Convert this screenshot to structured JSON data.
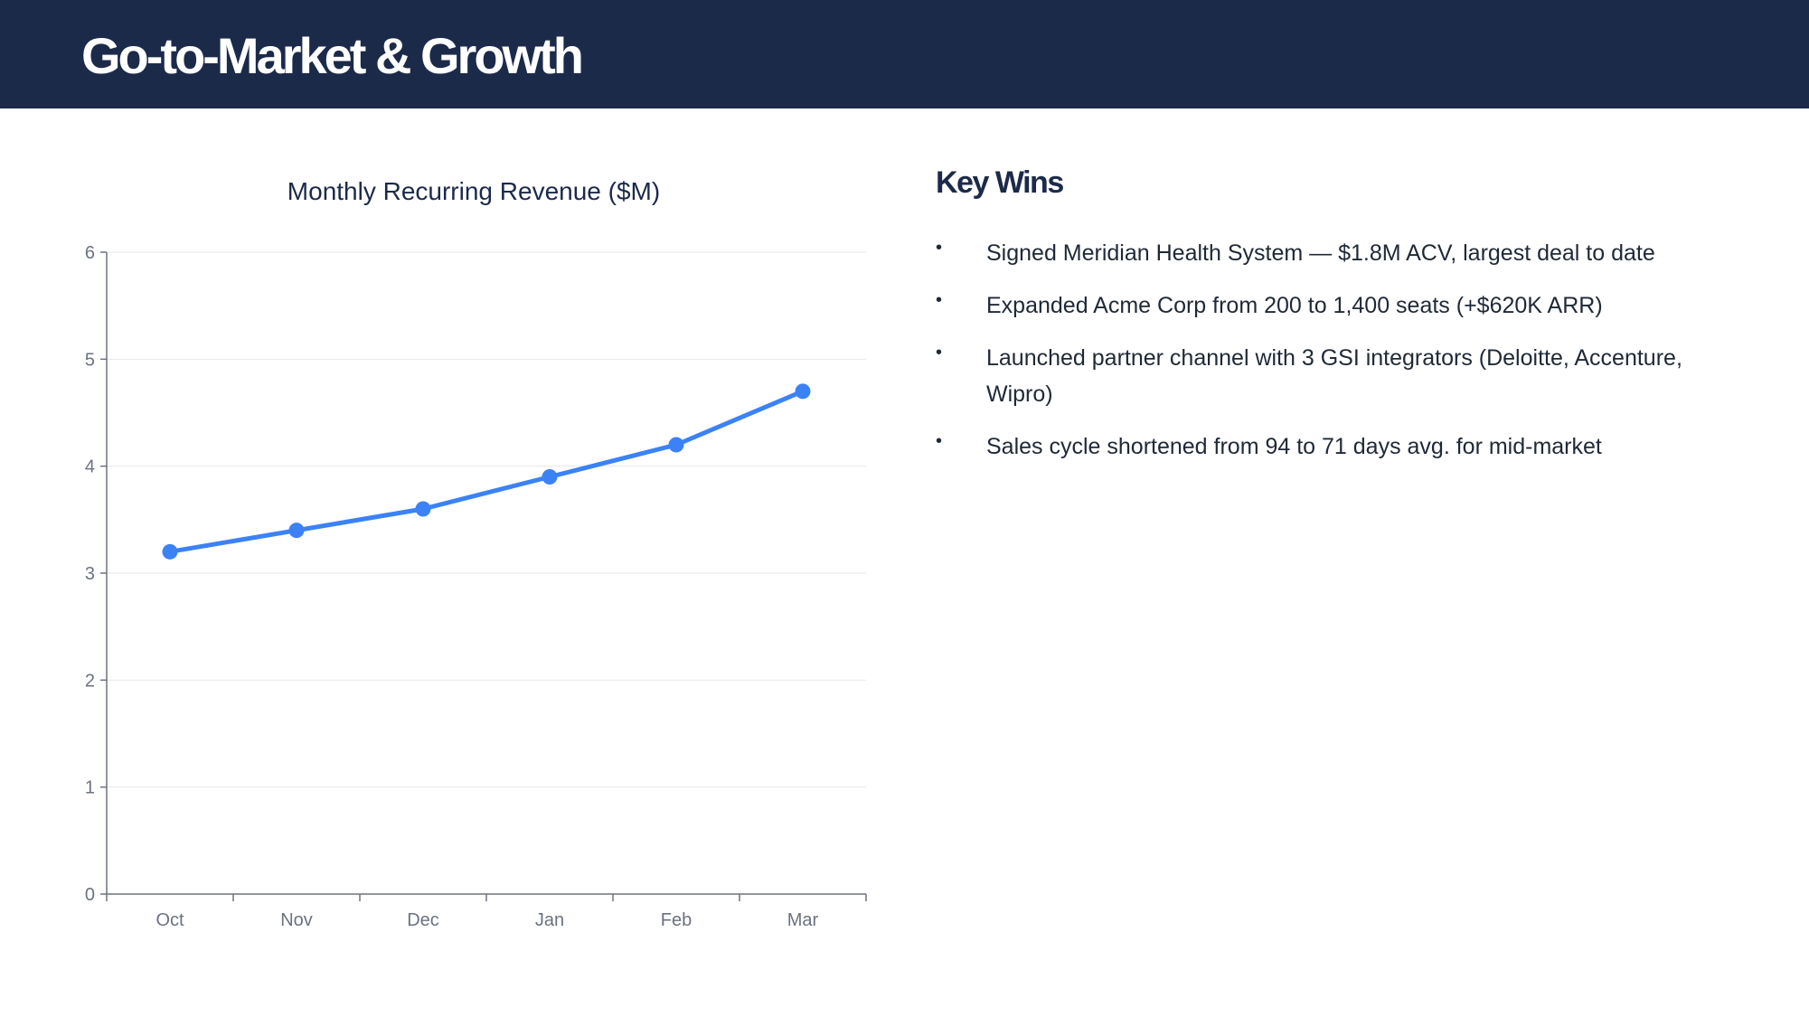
{
  "header": {
    "title": "Go-to-Market & Growth"
  },
  "colors": {
    "header_bg": "#1c2a4a",
    "series_line": "#3b82f6",
    "title_text": "#1c2a4a"
  },
  "chart_data": {
    "type": "line",
    "title": "Monthly Recurring Revenue ($M)",
    "categories": [
      "Oct",
      "Nov",
      "Dec",
      "Jan",
      "Feb",
      "Mar"
    ],
    "values": [
      3.2,
      3.4,
      3.6,
      3.9,
      4.2,
      4.7
    ],
    "xlabel": "",
    "ylabel": "",
    "ylim": [
      0,
      6
    ],
    "yticks": [
      0,
      1,
      2,
      3,
      4,
      5,
      6
    ],
    "grid": true,
    "markers": true
  },
  "key_wins": {
    "title": "Key Wins",
    "items": [
      "Signed Meridian Health System — $1.8M ACV, largest deal to date",
      "Expanded Acme Corp from 200 to 1,400 seats (+$620K ARR)",
      "Launched partner channel with 3 GSI integrators (Deloitte, Accenture, Wipro)",
      "Sales cycle shortened from 94 to 71 days avg. for mid-market"
    ]
  }
}
